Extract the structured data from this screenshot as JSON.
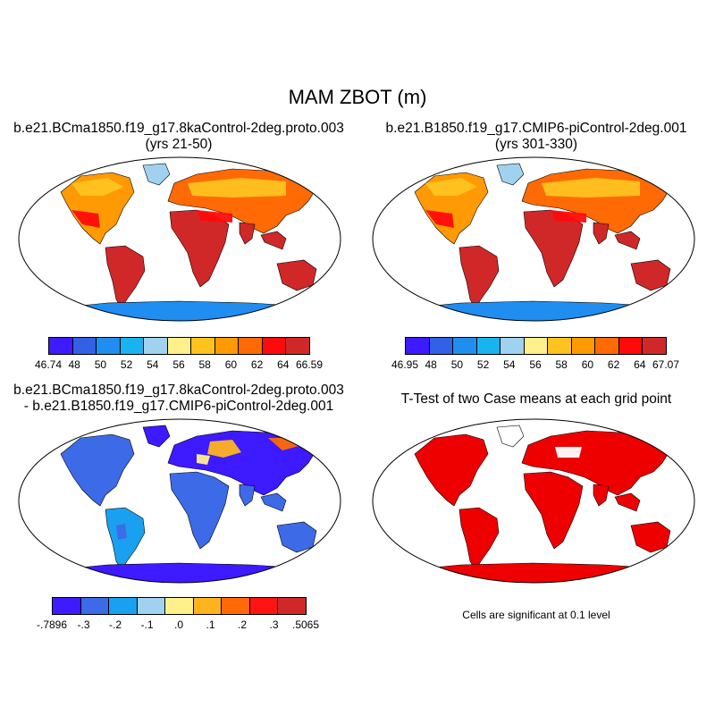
{
  "title": "MAM ZBOT (m)",
  "panels": [
    {
      "id": "p1",
      "title_lines": [
        "b.e21.BCma1850.f19_g17.8kaControl-2deg.proto.003",
        "(yrs 21-50)"
      ]
    },
    {
      "id": "p2",
      "title_lines": [
        "b.e21.B1850.f19_g17.CMIP6-piControl-2deg.001",
        "(yrs 301-330)"
      ]
    },
    {
      "id": "p3",
      "title_lines": [
        "b.e21.BCma1850.f19_g17.8kaControl-2deg.proto.003",
        "- b.e21.B1850.f19_g17.CMIP6-piControl-2deg.001"
      ]
    },
    {
      "id": "p4",
      "title_lines": [
        "T-Test of two Case means at each grid point"
      ]
    }
  ],
  "colorbars": [
    {
      "id": "cb1",
      "labels": [
        "46.74",
        "48",
        "50",
        "52",
        "54",
        "56",
        "58",
        "60",
        "62",
        "64",
        "66.59"
      ],
      "colors": [
        "#3d1aff",
        "#3361e6",
        "#1f8ef0",
        "#19b4f0",
        "#a0d2f0",
        "#fff08c",
        "#ffc31f",
        "#ff9a05",
        "#ff6a05",
        "#ff0a0a",
        "#d02828"
      ]
    },
    {
      "id": "cb2",
      "labels": [
        "46.95",
        "48",
        "50",
        "52",
        "54",
        "56",
        "58",
        "60",
        "62",
        "64",
        "67.07"
      ],
      "colors": [
        "#3d1aff",
        "#3361e6",
        "#1f8ef0",
        "#19b4f0",
        "#a0d2f0",
        "#fff08c",
        "#ffc31f",
        "#ff9a05",
        "#ff6a05",
        "#ff0a0a",
        "#d02828"
      ]
    },
    {
      "id": "cb3",
      "labels": [
        "-.7896",
        "-.3",
        "-.2",
        "-.1",
        ".0",
        ".1",
        ".2",
        ".3",
        ".5065"
      ],
      "colors": [
        "#3d1aff",
        "#3d6ae6",
        "#1aa0f0",
        "#a0d2f0",
        "#fff08c",
        "#ffb41f",
        "#ff6a05",
        "#ff1414",
        "#d02828"
      ]
    }
  ],
  "note": "Cells are significant at 0.1 level",
  "colors": {
    "land_warm": "#d02828",
    "ocean": "#ffffff",
    "ttest": "#ee0000"
  }
}
